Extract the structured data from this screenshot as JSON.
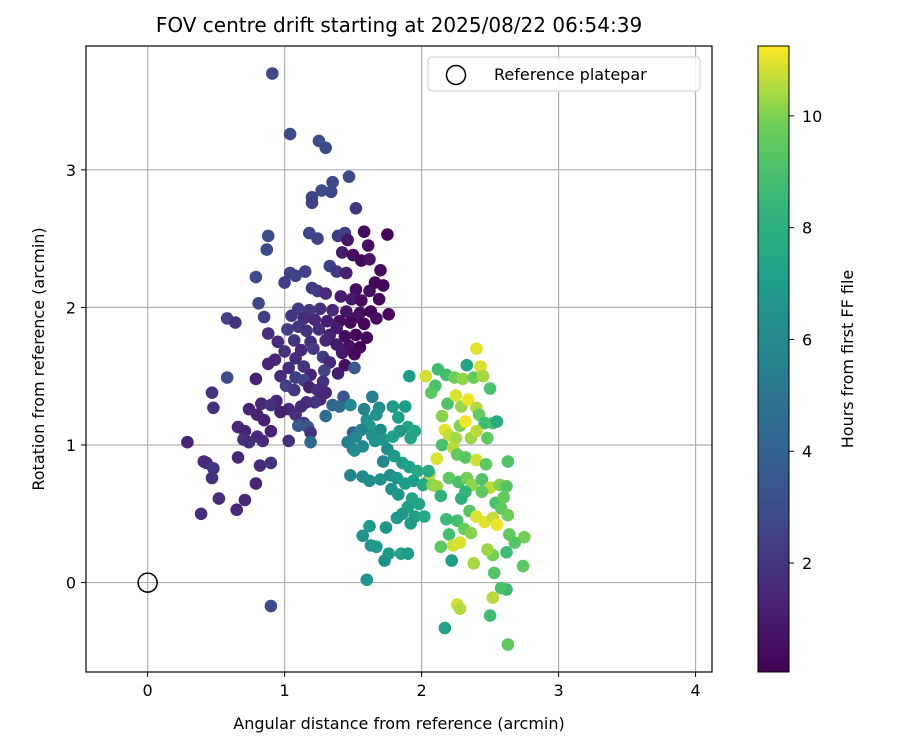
{
  "chart_data": {
    "type": "scatter",
    "title": "FOV centre drift starting at 2025/08/22 06:54:39",
    "xlabel": "Angular distance from reference (arcmin)",
    "ylabel": "Rotation from reference (arcmin)",
    "xlim": [
      -0.45,
      4.12
    ],
    "ylim": [
      -0.65,
      3.9
    ],
    "xticks": [
      0,
      1,
      2,
      3,
      4
    ],
    "yticks": [
      0,
      1,
      2,
      3
    ],
    "grid": true,
    "legend": {
      "position": "top-right",
      "entries": [
        "Reference platepar"
      ]
    },
    "reference_point": {
      "x": 0,
      "y": 0,
      "label": "Reference platepar"
    },
    "colorbar": {
      "label": "Hours from first FF file",
      "colormap": "viridis",
      "range": [
        0.05,
        11.25
      ],
      "ticks": [
        2,
        4,
        6,
        8,
        10
      ]
    },
    "points": [
      [
        0.91,
        3.7,
        2.9
      ],
      [
        1.04,
        3.26,
        3.0
      ],
      [
        1.25,
        3.21,
        3.1
      ],
      [
        1.3,
        3.16,
        3.0
      ],
      [
        1.47,
        2.95,
        2.9
      ],
      [
        1.35,
        2.91,
        2.8
      ],
      [
        1.27,
        2.85,
        2.9
      ],
      [
        1.34,
        2.84,
        2.7
      ],
      [
        1.2,
        2.8,
        2.6
      ],
      [
        1.2,
        2.76,
        2.5
      ],
      [
        1.52,
        2.72,
        2.0
      ],
      [
        1.18,
        2.54,
        2.7
      ],
      [
        1.24,
        2.5,
        2.5
      ],
      [
        1.39,
        2.52,
        2.3
      ],
      [
        1.44,
        2.54,
        2.4
      ],
      [
        1.46,
        2.49,
        0.8
      ],
      [
        1.58,
        2.55,
        0.4
      ],
      [
        1.75,
        2.53,
        0.2
      ],
      [
        0.88,
        2.52,
        2.9
      ],
      [
        0.87,
        2.42,
        2.8
      ],
      [
        1.61,
        2.45,
        0.6
      ],
      [
        1.42,
        2.4,
        1.0
      ],
      [
        1.5,
        2.38,
        0.5
      ],
      [
        1.56,
        2.34,
        0.3
      ],
      [
        1.62,
        2.35,
        0.7
      ],
      [
        1.33,
        2.3,
        2.6
      ],
      [
        1.38,
        2.26,
        2.1
      ],
      [
        1.45,
        2.25,
        1.2
      ],
      [
        1.7,
        2.27,
        0.4
      ],
      [
        1.15,
        2.26,
        2.5
      ],
      [
        1.04,
        2.25,
        2.5
      ],
      [
        1.08,
        2.23,
        2.6
      ],
      [
        0.79,
        2.22,
        2.9
      ],
      [
        1.0,
        2.18,
        2.4
      ],
      [
        1.2,
        2.14,
        2.3
      ],
      [
        1.24,
        2.12,
        2.2
      ],
      [
        1.66,
        2.18,
        0.3
      ],
      [
        1.72,
        2.16,
        0.2
      ],
      [
        1.52,
        2.13,
        0.5
      ],
      [
        1.62,
        2.12,
        0.6
      ],
      [
        1.3,
        2.1,
        1.6
      ],
      [
        1.41,
        2.08,
        1.1
      ],
      [
        1.49,
        2.06,
        0.9
      ],
      [
        1.56,
        2.05,
        0.4
      ],
      [
        1.69,
        2.06,
        0.3
      ],
      [
        0.81,
        2.03,
        2.8
      ],
      [
        1.1,
        1.99,
        2.3
      ],
      [
        1.18,
        1.98,
        2.1
      ],
      [
        1.26,
        1.99,
        1.8
      ],
      [
        1.35,
        1.98,
        1.5
      ],
      [
        1.45,
        1.97,
        0.8
      ],
      [
        1.55,
        1.96,
        0.4
      ],
      [
        1.63,
        1.97,
        0.2
      ],
      [
        1.76,
        1.95,
        0.3
      ],
      [
        1.67,
        1.92,
        0.5
      ],
      [
        1.53,
        1.93,
        0.7
      ],
      [
        0.58,
        1.92,
        2.5
      ],
      [
        0.64,
        1.89,
        1.9
      ],
      [
        0.85,
        1.93,
        2.4
      ],
      [
        1.05,
        1.94,
        2.0
      ],
      [
        1.14,
        1.92,
        1.7
      ],
      [
        1.22,
        1.91,
        1.5
      ],
      [
        1.31,
        1.9,
        1.1
      ],
      [
        1.4,
        1.9,
        0.6
      ],
      [
        1.48,
        1.89,
        0.3
      ],
      [
        1.58,
        1.88,
        0.2
      ],
      [
        1.38,
        1.85,
        1.0
      ],
      [
        1.25,
        1.84,
        1.6
      ],
      [
        1.1,
        1.86,
        2.2
      ],
      [
        1.02,
        1.84,
        2.4
      ],
      [
        1.16,
        1.83,
        1.8
      ],
      [
        0.88,
        1.81,
        1.7
      ],
      [
        1.33,
        1.8,
        1.2
      ],
      [
        1.44,
        1.79,
        0.5
      ],
      [
        1.52,
        1.8,
        0.3
      ],
      [
        1.6,
        1.78,
        0.4
      ],
      [
        1.3,
        1.76,
        1.4
      ],
      [
        1.19,
        1.75,
        1.7
      ],
      [
        1.07,
        1.76,
        2.0
      ],
      [
        0.95,
        1.75,
        1.6
      ],
      [
        1.38,
        1.73,
        1.0
      ],
      [
        1.47,
        1.72,
        0.7
      ],
      [
        1.55,
        1.71,
        0.2
      ],
      [
        1.21,
        1.7,
        2.2
      ],
      [
        1.12,
        1.69,
        1.5
      ],
      [
        1.0,
        1.68,
        1.8
      ],
      [
        1.42,
        1.67,
        0.8
      ],
      [
        1.51,
        1.66,
        0.3
      ],
      [
        1.28,
        1.64,
        2.3
      ],
      [
        1.08,
        1.63,
        1.6
      ],
      [
        0.93,
        1.62,
        1.4
      ],
      [
        0.88,
        1.59,
        1.3
      ],
      [
        1.33,
        1.6,
        1.5
      ],
      [
        1.44,
        1.58,
        0.5
      ],
      [
        1.14,
        1.57,
        1.9
      ],
      [
        1.03,
        1.56,
        1.7
      ],
      [
        1.51,
        1.56,
        3.7
      ],
      [
        1.29,
        1.54,
        2.6
      ],
      [
        1.39,
        1.52,
        1.1
      ],
      [
        1.19,
        1.51,
        1.3
      ],
      [
        1.08,
        1.49,
        2.4
      ],
      [
        0.97,
        1.5,
        1.6
      ],
      [
        0.58,
        1.49,
        3.0
      ],
      [
        0.79,
        1.48,
        1.2
      ],
      [
        1.14,
        1.47,
        2.5
      ],
      [
        1.28,
        1.46,
        1.8
      ],
      [
        1.01,
        1.43,
        2.6
      ],
      [
        1.18,
        1.42,
        1.2
      ],
      [
        1.24,
        1.4,
        1.7
      ],
      [
        1.3,
        1.38,
        1.5
      ],
      [
        1.07,
        1.4,
        2.0
      ],
      [
        0.47,
        1.38,
        1.9
      ],
      [
        1.43,
        1.35,
        3.2
      ],
      [
        1.26,
        1.33,
        1.4
      ],
      [
        1.22,
        1.31,
        2.0
      ],
      [
        1.16,
        1.31,
        1.6
      ],
      [
        0.94,
        1.32,
        1.4
      ],
      [
        0.83,
        1.3,
        1.5
      ],
      [
        0.9,
        1.29,
        1.8
      ],
      [
        1.35,
        1.29,
        4.1
      ],
      [
        1.4,
        1.28,
        4.3
      ],
      [
        1.12,
        1.28,
        1.7
      ],
      [
        0.48,
        1.27,
        1.8
      ],
      [
        0.74,
        1.26,
        1.3
      ],
      [
        1.03,
        1.26,
        1.5
      ],
      [
        0.97,
        1.24,
        1.2
      ],
      [
        1.08,
        1.22,
        1.7
      ],
      [
        1.3,
        1.21,
        4.6
      ],
      [
        0.8,
        1.22,
        1.3
      ],
      [
        0.85,
        1.18,
        1.2
      ],
      [
        1.14,
        1.16,
        2.4
      ],
      [
        1.1,
        1.14,
        3.6
      ],
      [
        1.17,
        1.13,
        3.2
      ],
      [
        0.66,
        1.13,
        1.4
      ],
      [
        0.71,
        1.1,
        1.3
      ],
      [
        0.9,
        1.1,
        1.2
      ],
      [
        1.19,
        1.09,
        2.0
      ],
      [
        1.5,
        1.09,
        4.0
      ],
      [
        0.8,
        1.06,
        1.5
      ],
      [
        0.84,
        1.03,
        1.6
      ],
      [
        0.7,
        1.04,
        1.8
      ],
      [
        0.74,
        1.02,
        1.6
      ],
      [
        1.03,
        1.03,
        1.7
      ],
      [
        0.29,
        1.02,
        1.3
      ],
      [
        1.19,
        1.02,
        4.3
      ],
      [
        1.5,
        0.97,
        4.5
      ],
      [
        0.41,
        0.88,
        1.6
      ],
      [
        0.43,
        0.87,
        1.5
      ],
      [
        0.66,
        0.91,
        1.4
      ],
      [
        0.82,
        0.85,
        1.7
      ],
      [
        0.9,
        0.87,
        1.9
      ],
      [
        0.48,
        0.83,
        2.0
      ],
      [
        0.47,
        0.76,
        1.8
      ],
      [
        0.79,
        0.72,
        1.3
      ],
      [
        0.52,
        0.61,
        1.6
      ],
      [
        0.71,
        0.6,
        1.5
      ],
      [
        0.65,
        0.53,
        1.4
      ],
      [
        0.39,
        0.5,
        1.7
      ],
      [
        0.9,
        -0.17,
        2.9
      ],
      [
        1.48,
        1.29,
        6.0
      ],
      [
        1.58,
        1.26,
        5.7
      ],
      [
        1.64,
        1.35,
        5.5
      ],
      [
        1.69,
        1.27,
        6.2
      ],
      [
        1.67,
        1.22,
        6.5
      ],
      [
        1.6,
        1.18,
        6.3
      ],
      [
        1.62,
        1.14,
        6.8
      ],
      [
        1.7,
        1.11,
        6.1
      ],
      [
        1.56,
        1.11,
        5.8
      ],
      [
        1.64,
        1.07,
        6.4
      ],
      [
        1.52,
        1.06,
        5.9
      ],
      [
        1.46,
        1.02,
        5.6
      ],
      [
        1.72,
        1.04,
        6.7
      ],
      [
        1.66,
        1.03,
        6.6
      ],
      [
        1.57,
        0.99,
        6.0
      ],
      [
        1.51,
        0.96,
        6.1
      ],
      [
        1.79,
        1.28,
        6.9
      ],
      [
        1.83,
        1.2,
        7.1
      ],
      [
        1.88,
        1.28,
        7.0
      ],
      [
        1.9,
        1.13,
        7.3
      ],
      [
        1.84,
        1.1,
        6.8
      ],
      [
        1.79,
        1.06,
        7.2
      ],
      [
        1.95,
        1.1,
        7.5
      ],
      [
        1.92,
        1.05,
        7.4
      ],
      [
        1.75,
        0.97,
        6.3
      ],
      [
        1.8,
        0.92,
        6.9
      ],
      [
        1.86,
        0.87,
        7.0
      ],
      [
        1.91,
        0.84,
        7.2
      ],
      [
        1.72,
        0.88,
        5.9
      ],
      [
        1.97,
        0.81,
        7.6
      ],
      [
        1.77,
        0.78,
        6.2
      ],
      [
        1.82,
        0.76,
        6.6
      ],
      [
        1.48,
        0.78,
        5.8
      ],
      [
        1.57,
        0.77,
        6.0
      ],
      [
        1.62,
        0.74,
        6.2
      ],
      [
        1.7,
        0.75,
        6.4
      ],
      [
        1.94,
        0.74,
        7.1
      ],
      [
        2.01,
        0.71,
        7.6
      ],
      [
        2.05,
        0.74,
        7.8
      ],
      [
        1.88,
        0.72,
        7.0
      ],
      [
        1.78,
        0.68,
        6.5
      ],
      [
        1.83,
        0.64,
        6.7
      ],
      [
        1.93,
        0.61,
        7.3
      ],
      [
        1.98,
        0.57,
        7.4
      ],
      [
        1.9,
        0.55,
        7.1
      ],
      [
        1.86,
        0.5,
        6.9
      ],
      [
        1.95,
        0.48,
        7.2
      ],
      [
        1.82,
        0.47,
        6.8
      ],
      [
        1.92,
        0.43,
        7.0
      ],
      [
        1.74,
        0.4,
        6.6
      ],
      [
        1.62,
        0.41,
        6.9
      ],
      [
        1.57,
        0.34,
        6.5
      ],
      [
        1.63,
        0.27,
        6.7
      ],
      [
        1.67,
        0.26,
        6.8
      ],
      [
        1.85,
        0.21,
        7.3
      ],
      [
        1.76,
        0.21,
        6.9
      ],
      [
        1.73,
        0.16,
        6.5
      ],
      [
        1.9,
        0.21,
        7.0
      ],
      [
        1.6,
        0.02,
        6.6
      ],
      [
        2.03,
        1.5,
        10.8
      ],
      [
        1.91,
        1.5,
        7.0
      ],
      [
        2.1,
        1.43,
        9.0
      ],
      [
        2.07,
        1.38,
        9.4
      ],
      [
        2.12,
        1.55,
        8.7
      ],
      [
        2.18,
        1.51,
        8.8
      ],
      [
        2.24,
        1.49,
        9.8
      ],
      [
        2.3,
        1.48,
        10.2
      ],
      [
        2.33,
        1.58,
        7.4
      ],
      [
        2.38,
        1.49,
        9.7
      ],
      [
        2.4,
        1.7,
        11.0
      ],
      [
        2.43,
        1.57,
        10.9
      ],
      [
        2.45,
        1.5,
        10.4
      ],
      [
        2.5,
        1.41,
        9.0
      ],
      [
        2.19,
        1.3,
        9.1
      ],
      [
        2.25,
        1.36,
        10.9
      ],
      [
        2.29,
        1.28,
        10.3
      ],
      [
        2.34,
        1.33,
        11.1
      ],
      [
        2.4,
        1.27,
        10.5
      ],
      [
        2.42,
        1.22,
        9.6
      ],
      [
        2.46,
        1.16,
        8.7
      ],
      [
        2.52,
        1.16,
        8.9
      ],
      [
        2.55,
        1.17,
        7.7
      ],
      [
        2.15,
        1.21,
        10.1
      ],
      [
        2.17,
        1.11,
        11.0
      ],
      [
        2.2,
        1.07,
        10.7
      ],
      [
        2.25,
        1.05,
        10.4
      ],
      [
        2.28,
        1.14,
        10.0
      ],
      [
        2.32,
        1.17,
        11.1
      ],
      [
        2.36,
        1.05,
        10.3
      ],
      [
        2.4,
        1.1,
        10.6
      ],
      [
        2.48,
        1.05,
        9.5
      ],
      [
        2.15,
        1.0,
        9.0
      ],
      [
        2.23,
        0.98,
        10.6
      ],
      [
        2.26,
        0.93,
        9.6
      ],
      [
        2.32,
        0.91,
        9.3
      ],
      [
        2.4,
        0.89,
        10.8
      ],
      [
        2.47,
        0.86,
        9.5
      ],
      [
        2.11,
        0.9,
        10.9
      ],
      [
        2.06,
        0.79,
        10.6
      ],
      [
        2.2,
        0.76,
        9.4
      ],
      [
        2.27,
        0.73,
        9.0
      ],
      [
        2.33,
        0.76,
        9.9
      ],
      [
        2.37,
        0.71,
        10.2
      ],
      [
        2.44,
        0.75,
        9.1
      ],
      [
        2.5,
        0.69,
        10.6
      ],
      [
        2.57,
        0.71,
        10.0
      ],
      [
        2.62,
        0.7,
        9.3
      ],
      [
        2.63,
        0.88,
        9.2
      ],
      [
        2.08,
        0.71,
        10.1
      ],
      [
        2.11,
        0.7,
        10.3
      ],
      [
        2.44,
        0.66,
        9.5
      ],
      [
        2.54,
        0.58,
        9.0
      ],
      [
        2.58,
        0.54,
        9.4
      ],
      [
        2.6,
        0.62,
        9.6
      ],
      [
        2.35,
        0.52,
        9.2
      ],
      [
        2.4,
        0.48,
        10.9
      ],
      [
        2.46,
        0.44,
        11.0
      ],
      [
        2.52,
        0.47,
        10.7
      ],
      [
        2.55,
        0.42,
        11.1
      ],
      [
        2.63,
        0.49,
        9.8
      ],
      [
        2.26,
        0.45,
        8.8
      ],
      [
        2.18,
        0.46,
        8.6
      ],
      [
        2.31,
        0.39,
        9.7
      ],
      [
        2.36,
        0.36,
        10.1
      ],
      [
        2.2,
        0.35,
        8.9
      ],
      [
        2.23,
        0.27,
        10.8
      ],
      [
        2.28,
        0.29,
        10.9
      ],
      [
        2.64,
        0.35,
        9.5
      ],
      [
        2.75,
        0.33,
        9.9
      ],
      [
        2.68,
        0.29,
        9.3
      ],
      [
        2.62,
        0.22,
        8.7
      ],
      [
        2.52,
        0.2,
        9.9
      ],
      [
        2.48,
        0.24,
        10.3
      ],
      [
        2.14,
        0.26,
        9.4
      ],
      [
        2.38,
        0.14,
        10.4
      ],
      [
        2.53,
        0.07,
        9.2
      ],
      [
        2.74,
        0.12,
        9.4
      ],
      [
        2.62,
        -0.05,
        8.6
      ],
      [
        2.58,
        -0.04,
        9.0
      ],
      [
        2.52,
        -0.11,
        10.6
      ],
      [
        2.26,
        -0.16,
        10.8
      ],
      [
        2.28,
        -0.19,
        10.5
      ],
      [
        2.5,
        -0.24,
        8.7
      ],
      [
        2.63,
        -0.45,
        9.5
      ],
      [
        2.17,
        -0.33,
        7.2
      ],
      [
        2.22,
        0.16,
        7.0
      ],
      [
        2.02,
        0.48,
        7.6
      ],
      [
        2.05,
        0.81,
        7.8
      ],
      [
        2.14,
        0.63,
        8.1
      ],
      [
        2.29,
        0.61,
        8.0
      ],
      [
        2.32,
        0.66,
        8.3
      ]
    ]
  }
}
